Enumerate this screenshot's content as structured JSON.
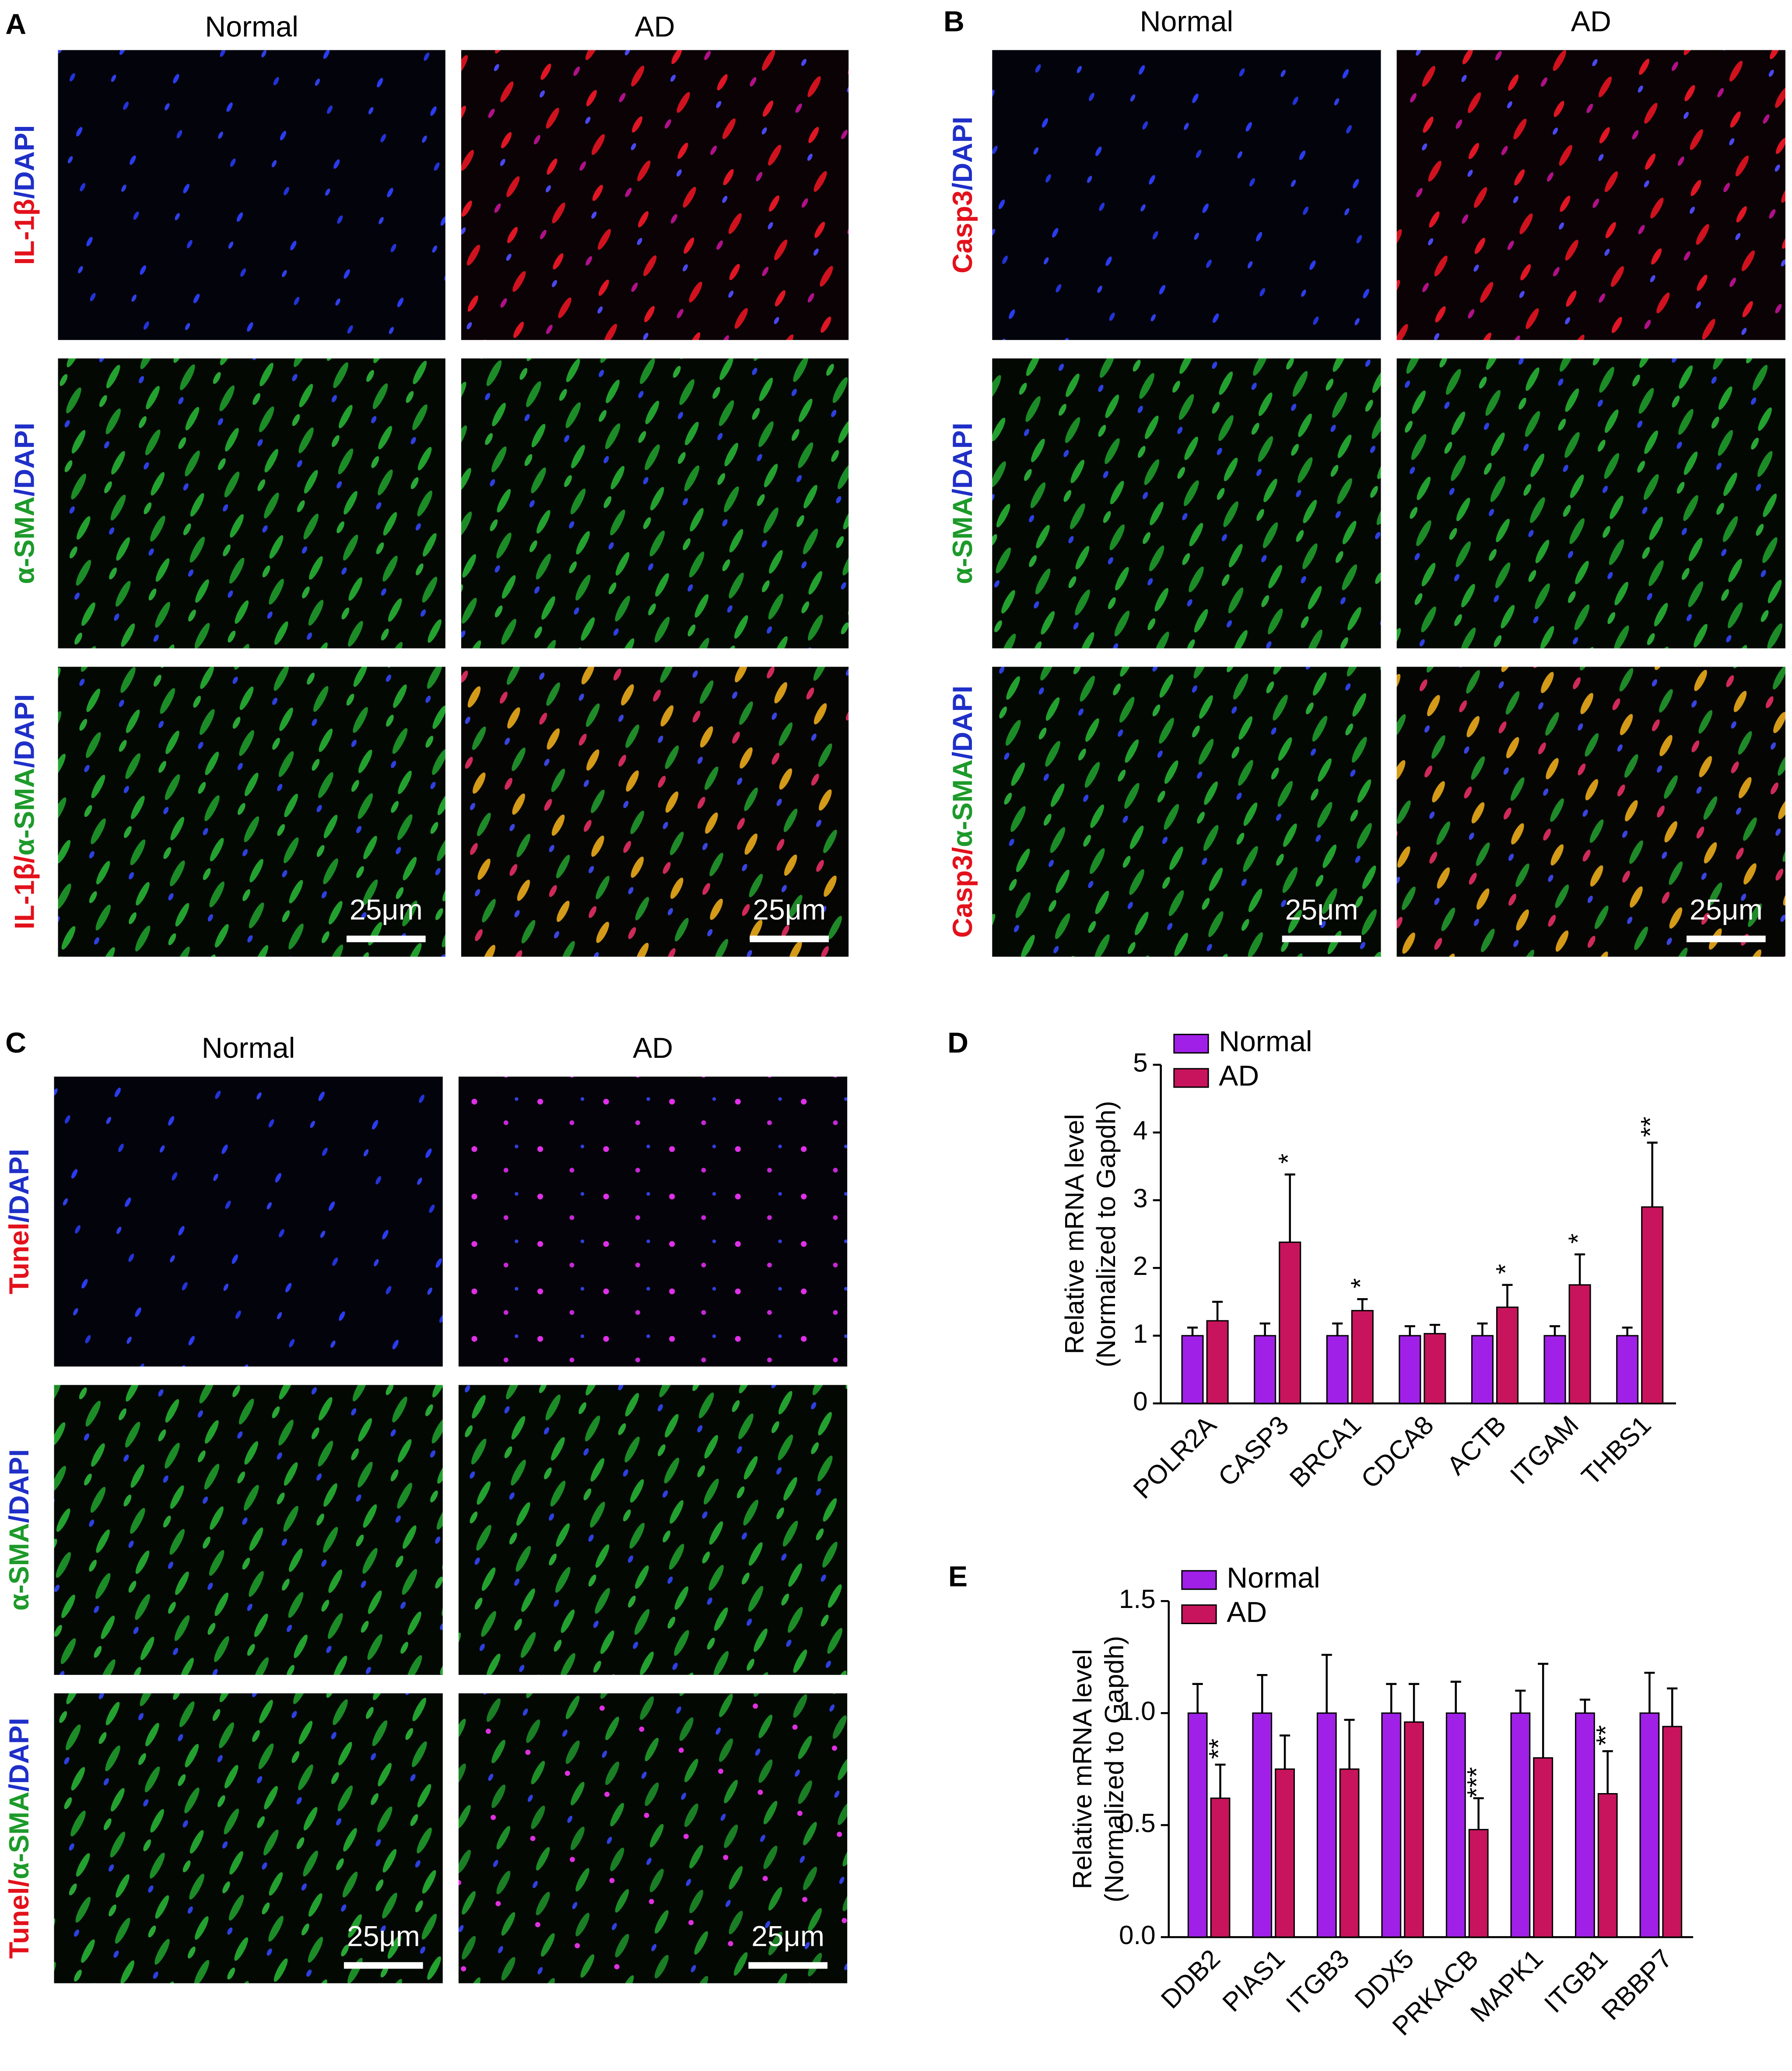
{
  "panels": [
    {
      "letter": "A",
      "columns": [
        "Normal",
        "AD"
      ],
      "rows": [
        [
          {
            "text": "IL-1β",
            "color": "#e3111b"
          },
          {
            "text": "/DAPI",
            "color": "#1f2fc8"
          }
        ],
        [
          {
            "text": "α-SMA",
            "color": "#1d9a2a"
          },
          {
            "text": "/DAPI",
            "color": "#1f2fc8"
          }
        ],
        [
          {
            "text": "IL-1β/",
            "color": "#e3111b"
          },
          {
            "text": "α-SMA",
            "color": "#1d9a2a"
          },
          {
            "text": "/DAPI",
            "color": "#1f2fc8"
          }
        ]
      ],
      "scale_bars": [
        "25μm",
        "25μm"
      ]
    },
    {
      "letter": "B",
      "columns": [
        "Normal",
        "AD"
      ],
      "rows": [
        [
          {
            "text": "Casp3",
            "color": "#e3111b"
          },
          {
            "text": "/DAPI",
            "color": "#1f2fc8"
          }
        ],
        [
          {
            "text": "α-SMA",
            "color": "#1d9a2a"
          },
          {
            "text": "/DAPI",
            "color": "#1f2fc8"
          }
        ],
        [
          {
            "text": "Casp3/",
            "color": "#e3111b"
          },
          {
            "text": "α-SMA",
            "color": "#1d9a2a"
          },
          {
            "text": "/DAPI",
            "color": "#1f2fc8"
          }
        ]
      ],
      "scale_bars": [
        "25μm",
        "25μm"
      ]
    },
    {
      "letter": "C",
      "columns": [
        "Normal",
        "AD"
      ],
      "rows": [
        [
          {
            "text": "Tunel",
            "color": "#e3111b"
          },
          {
            "text": "/DAPI",
            "color": "#1f2fc8"
          }
        ],
        [
          {
            "text": "α-SMA",
            "color": "#1d9a2a"
          },
          {
            "text": "/DAPI",
            "color": "#1f2fc8"
          }
        ],
        [
          {
            "text": "Tunel/",
            "color": "#e3111b"
          },
          {
            "text": "α-SMA",
            "color": "#1d9a2a"
          },
          {
            "text": "/DAPI",
            "color": "#1f2fc8"
          }
        ]
      ],
      "scale_bars": [
        "25μm",
        "25μm"
      ]
    }
  ],
  "chart_data": [
    {
      "type": "bar",
      "panel_label": "D",
      "ylabel": [
        "Relative mRNA level",
        "(Normalized to Gapdh)"
      ],
      "categories": [
        "POLR2A",
        "CASP3",
        "BRCA1",
        "CDCA8",
        "ACTB",
        "ITGAM",
        "THBS1"
      ],
      "series": [
        {
          "name": "Normal",
          "color": "#a020e8",
          "values": [
            1,
            1,
            1,
            1,
            1,
            1,
            1
          ],
          "errors": [
            0.12,
            0.18,
            0.18,
            0.14,
            0.18,
            0.14,
            0.12
          ]
        },
        {
          "name": "AD",
          "color": "#c8145c",
          "values": [
            1.22,
            2.38,
            1.37,
            1.03,
            1.42,
            1.75,
            2.9
          ],
          "errors": [
            0.28,
            1.0,
            0.17,
            0.13,
            0.33,
            0.45,
            0.95
          ]
        }
      ],
      "significance": [
        null,
        "*",
        "*",
        null,
        "*",
        "*",
        "**"
      ],
      "ylim": [
        0,
        5
      ],
      "yticks": [
        0,
        1,
        2,
        3,
        4,
        5
      ],
      "legend": "upper-left"
    },
    {
      "type": "bar",
      "panel_label": "E",
      "ylabel": [
        "Relative mRNA level",
        "(Normalized to Gapdh)"
      ],
      "categories": [
        "DDB2",
        "PIAS1",
        "ITGB3",
        "DDX5",
        "PRKACB",
        "MAPK1",
        "ITGB1",
        "RBBP7"
      ],
      "series": [
        {
          "name": "Normal",
          "color": "#a020e8",
          "values": [
            1,
            1,
            1,
            1,
            1,
            1,
            1,
            1
          ],
          "errors": [
            0.13,
            0.17,
            0.26,
            0.13,
            0.14,
            0.1,
            0.06,
            0.18
          ]
        },
        {
          "name": "AD",
          "color": "#c8145c",
          "values": [
            0.62,
            0.75,
            0.75,
            0.96,
            0.48,
            0.8,
            0.64,
            0.94
          ],
          "errors": [
            0.15,
            0.15,
            0.22,
            0.17,
            0.14,
            0.42,
            0.19,
            0.17
          ]
        }
      ],
      "significance": [
        "**",
        null,
        null,
        null,
        "***",
        null,
        "**",
        null
      ],
      "ylim": [
        0,
        1.5
      ],
      "yticks": [
        {
          "value": 0,
          "label": "0.0"
        },
        0.5,
        {
          "value": 1,
          "label": "1.0"
        },
        1.5
      ],
      "legend": "upper-left"
    }
  ]
}
